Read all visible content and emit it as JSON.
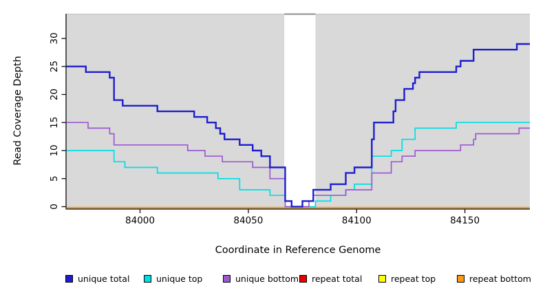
{
  "chart_data": {
    "type": "line",
    "step": true,
    "title": "",
    "xlabel": "Coordinate in Reference Genome",
    "ylabel": "Read Coverage Depth",
    "xlim": [
      83966,
      84180
    ],
    "ylim": [
      -0.3,
      34.4
    ],
    "x_ticks": [
      84000,
      84050,
      84100,
      84150
    ],
    "y_ticks": [
      0,
      5,
      10,
      15,
      20,
      25,
      30
    ],
    "grid": false,
    "panel_bg": "#d9d9d9",
    "unshaded_band_x": [
      84066.6,
      84081
    ],
    "legend_position": "bottom",
    "series": [
      {
        "name": "unique total",
        "color": "#1D1DCE",
        "xend": 84180,
        "points": [
          [
            83966,
            25
          ],
          [
            83975,
            24
          ],
          [
            83986,
            23
          ],
          [
            83988,
            19
          ],
          [
            83992,
            18
          ],
          [
            84008,
            17
          ],
          [
            84025,
            16
          ],
          [
            84031,
            15
          ],
          [
            84035,
            14
          ],
          [
            84037,
            13
          ],
          [
            84039,
            12
          ],
          [
            84046,
            11
          ],
          [
            84052,
            10
          ],
          [
            84056,
            9
          ],
          [
            84060,
            7
          ],
          [
            84067,
            1
          ],
          [
            84070,
            0
          ],
          [
            84075,
            1
          ],
          [
            84080,
            3
          ],
          [
            84088,
            4
          ],
          [
            84095,
            6
          ],
          [
            84099,
            7
          ],
          [
            84107,
            12
          ],
          [
            84108,
            15
          ],
          [
            84117,
            17
          ],
          [
            84118,
            19
          ],
          [
            84122,
            21
          ],
          [
            84126,
            22
          ],
          [
            84127,
            23
          ],
          [
            84129,
            24
          ],
          [
            84146,
            25
          ],
          [
            84148,
            26
          ],
          [
            84154,
            28
          ],
          [
            84174,
            29
          ]
        ]
      },
      {
        "name": "unique top",
        "color": "#00DDE6",
        "xend": 84180,
        "points": [
          [
            83966,
            10
          ],
          [
            83988,
            8
          ],
          [
            83993,
            7
          ],
          [
            84008,
            6
          ],
          [
            84036,
            5
          ],
          [
            84046,
            3
          ],
          [
            84060,
            2
          ],
          [
            84067,
            0
          ],
          [
            84081,
            1
          ],
          [
            84088,
            2
          ],
          [
            84095,
            3
          ],
          [
            84099,
            4
          ],
          [
            84107,
            9
          ],
          [
            84116,
            10
          ],
          [
            84121,
            12
          ],
          [
            84127,
            14
          ],
          [
            84146,
            15
          ]
        ]
      },
      {
        "name": "unique bottom",
        "color": "#9C59D1",
        "xend": 84180,
        "points": [
          [
            83966,
            15
          ],
          [
            83976,
            14
          ],
          [
            83986,
            13
          ],
          [
            83988,
            11
          ],
          [
            84022,
            10
          ],
          [
            84030,
            9
          ],
          [
            84038,
            8
          ],
          [
            84052,
            7
          ],
          [
            84060,
            5
          ],
          [
            84067,
            0
          ],
          [
            84078,
            1
          ],
          [
            84080,
            2
          ],
          [
            84095,
            3
          ],
          [
            84107,
            6
          ],
          [
            84116,
            8
          ],
          [
            84121,
            9
          ],
          [
            84127,
            10
          ],
          [
            84148,
            11
          ],
          [
            84154,
            12
          ],
          [
            84155,
            13
          ],
          [
            84175,
            14
          ]
        ]
      },
      {
        "name": "repeat total",
        "color": "#E60000",
        "xend": 84180,
        "points": [
          [
            83966,
            0
          ]
        ]
      },
      {
        "name": "repeat top",
        "color": "#FFFF00",
        "xend": 84180,
        "points": [
          [
            83966,
            0
          ]
        ]
      },
      {
        "name": "repeat bottom",
        "color": "#FF9912",
        "xend": 84180,
        "points": [
          [
            83966,
            0
          ]
        ]
      }
    ]
  }
}
